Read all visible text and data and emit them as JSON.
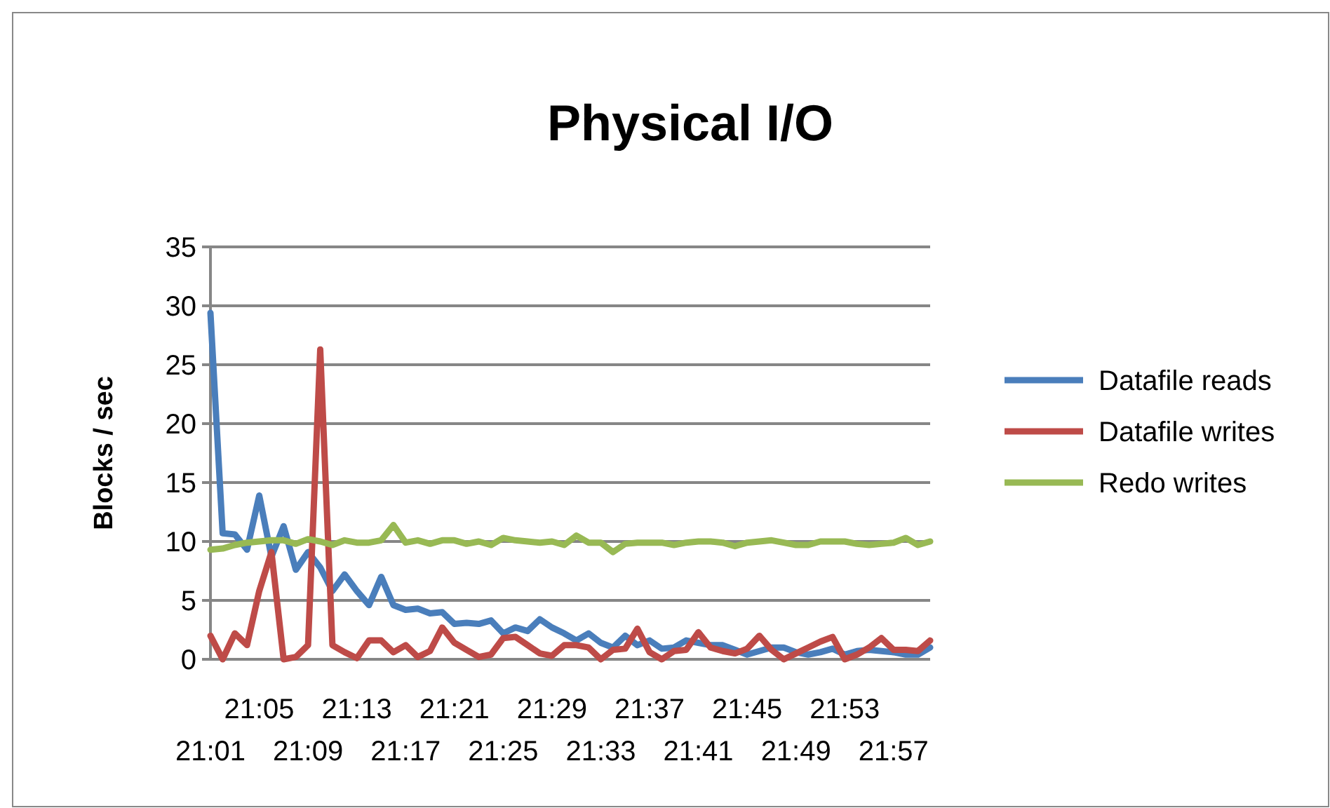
{
  "chart_data": {
    "type": "line",
    "title": "Physical I/O",
    "ylabel": "Blocks / sec",
    "categories": [
      "21:01",
      null,
      null,
      null,
      "21:05",
      null,
      null,
      null,
      "21:09",
      null,
      null,
      null,
      "21:13",
      null,
      null,
      null,
      "21:17",
      null,
      null,
      null,
      "21:21",
      null,
      null,
      null,
      "21:25",
      null,
      null,
      null,
      "21:29",
      null,
      null,
      null,
      "21:33",
      null,
      null,
      null,
      "21:37",
      null,
      null,
      null,
      "21:41",
      null,
      null,
      null,
      "21:45",
      null,
      null,
      null,
      "21:49",
      null,
      null,
      null,
      "21:53",
      null,
      null,
      null,
      "21:57",
      null,
      null,
      null
    ],
    "series": [
      {
        "name": "Datafile reads",
        "color": "#4a7ebb",
        "values": [
          29.4,
          10.7,
          10.6,
          9.3,
          13.9,
          8.7,
          11.3,
          7.6,
          9.1,
          7.8,
          5.8,
          7.2,
          5.8,
          4.6,
          7.0,
          4.6,
          4.2,
          4.3,
          3.9,
          4.0,
          3.0,
          3.1,
          3.0,
          3.3,
          2.2,
          2.7,
          2.4,
          3.4,
          2.7,
          2.2,
          1.6,
          2.2,
          1.4,
          1.0,
          2.0,
          1.2,
          1.6,
          0.9,
          1.0,
          1.6,
          1.4,
          1.2,
          1.2,
          0.8,
          0.4,
          0.7,
          1.0,
          1.0,
          0.6,
          0.4,
          0.6,
          0.9,
          0.4,
          0.7,
          0.8,
          0.7,
          0.6,
          0.4,
          0.4,
          1.0
        ]
      },
      {
        "name": "Datafile writes",
        "color": "#be4b48",
        "values": [
          2.0,
          0,
          2.2,
          1.2,
          5.8,
          9.1,
          0,
          0.2,
          1.2,
          26.3,
          1.2,
          0.6,
          0.1,
          1.6,
          1.6,
          0.6,
          1.2,
          0.2,
          0.7,
          2.7,
          1.4,
          0.8,
          0.2,
          0.4,
          1.8,
          1.9,
          1.2,
          0.5,
          0.3,
          1.2,
          1.2,
          1.0,
          0,
          0.8,
          0.9,
          2.6,
          0.6,
          0,
          0.7,
          0.8,
          2.3,
          1.0,
          0.7,
          0.5,
          0.9,
          2.0,
          0.8,
          0,
          0.5,
          1.0,
          1.5,
          1.9,
          0,
          0.4,
          1.0,
          1.8,
          0.8,
          0.8,
          0.7,
          1.6
        ]
      },
      {
        "name": "Redo writes",
        "color": "#98b954",
        "values": [
          9.3,
          9.4,
          9.7,
          9.9,
          10.0,
          10.1,
          10.1,
          9.8,
          10.2,
          10.0,
          9.7,
          10.1,
          9.9,
          9.9,
          10.1,
          11.4,
          9.9,
          10.1,
          9.8,
          10.1,
          10.1,
          9.8,
          10.0,
          9.7,
          10.3,
          10.1,
          10.0,
          9.9,
          10.0,
          9.7,
          10.5,
          9.9,
          9.9,
          9.1,
          9.8,
          9.9,
          9.9,
          9.9,
          9.7,
          9.9,
          10.0,
          10.0,
          9.9,
          9.6,
          9.9,
          10.0,
          10.1,
          9.9,
          9.7,
          9.7,
          10.0,
          10.0,
          10.0,
          9.8,
          9.7,
          9.8,
          9.9,
          10.3,
          9.7,
          10.0
        ]
      }
    ],
    "ylim": [
      0,
      35
    ],
    "yticks": [
      0,
      5,
      10,
      15,
      20,
      25,
      30,
      35
    ],
    "grid": "y",
    "legend": "right",
    "marker": "none",
    "line_style": "solid"
  }
}
